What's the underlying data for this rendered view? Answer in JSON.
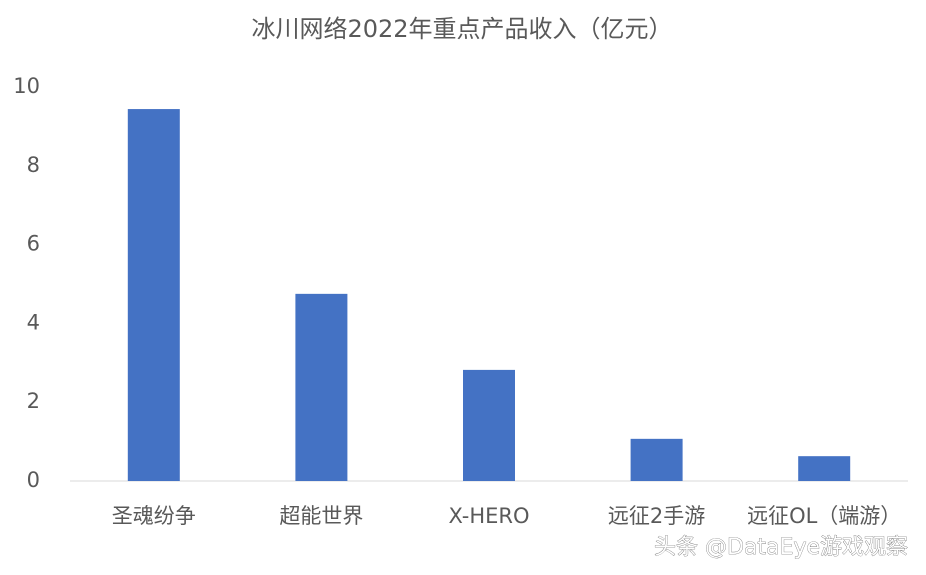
{
  "chart_data": {
    "type": "bar",
    "title": "冰川网络2022年重点产品收入（亿元）",
    "categories": [
      "圣魂纷争",
      "超能世界",
      "X-HERO",
      "远征2手游",
      "远征OL（端游）"
    ],
    "values": [
      9.44,
      4.75,
      2.82,
      1.07,
      0.63
    ],
    "color": "#4472c4",
    "ylim": [
      0,
      10
    ],
    "yticks": [
      0,
      2,
      4,
      6,
      8,
      10
    ],
    "grid": false,
    "watermark": "头条 @DataEye游戏观察"
  }
}
